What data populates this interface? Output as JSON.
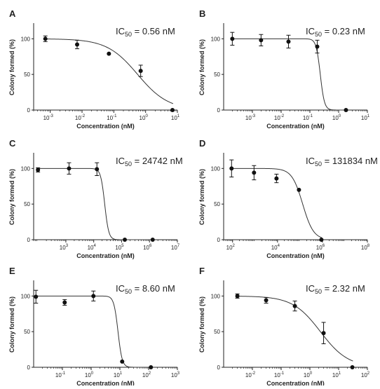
{
  "chart_data": [
    {
      "type": "scatter",
      "panel": "A",
      "ylabel": "Colony formed  (%)",
      "xlabel": "Concentration (nM)",
      "annotation": {
        "prefix": "IC",
        "sub": "50",
        "text": " = 0.56 nM"
      },
      "x_scale": "log",
      "x_ticks": [
        {
          "exp": "-3",
          "val": 0.001
        },
        {
          "exp": "-2",
          "val": 0.01
        },
        {
          "exp": "-1",
          "val": 0.1
        },
        {
          "exp": "0",
          "val": 1
        },
        {
          "exp": "1",
          "val": 10
        }
      ],
      "xlim": [
        0.0003,
        10
      ],
      "y_ticks": [
        0,
        50,
        100
      ],
      "ylim": [
        0,
        120
      ],
      "points": [
        {
          "x": 0.0007,
          "y": 100,
          "err": 4
        },
        {
          "x": 0.007,
          "y": 92,
          "err": 6
        },
        {
          "x": 0.07,
          "y": 79,
          "err": 0
        },
        {
          "x": 0.7,
          "y": 55,
          "err": 8
        },
        {
          "x": 7,
          "y": 0,
          "err": 0
        }
      ],
      "curve": {
        "top": 100,
        "bottom": 0,
        "ic50": 0.56,
        "hill": 0.9
      }
    },
    {
      "type": "scatter",
      "panel": "B",
      "ylabel": "Colony formed  (%)",
      "xlabel": "Concentration (nM)",
      "annotation": {
        "prefix": "IC",
        "sub": "50",
        "text": " = 0.23 nM"
      },
      "x_scale": "log",
      "x_ticks": [
        {
          "exp": "-3",
          "val": 0.001
        },
        {
          "exp": "-2",
          "val": 0.01
        },
        {
          "exp": "-1",
          "val": 0.1
        },
        {
          "exp": "0",
          "val": 1
        },
        {
          "exp": "1",
          "val": 10
        }
      ],
      "xlim": [
        0.0001,
        10
      ],
      "y_ticks": [
        0,
        50,
        100
      ],
      "ylim": [
        0,
        120
      ],
      "points": [
        {
          "x": 0.0002,
          "y": 100,
          "err": 9
        },
        {
          "x": 0.002,
          "y": 98,
          "err": 8
        },
        {
          "x": 0.018,
          "y": 96,
          "err": 9
        },
        {
          "x": 0.18,
          "y": 89,
          "err": 9
        },
        {
          "x": 1.8,
          "y": 0,
          "err": 0
        }
      ],
      "curve": {
        "top": 100,
        "bottom": 0,
        "ic50": 0.23,
        "hill": 6
      }
    },
    {
      "type": "scatter",
      "panel": "C",
      "ylabel": "Colony formed  (%)",
      "xlabel": "Concentration (nM)",
      "annotation": {
        "prefix": "IC",
        "sub": "50",
        "text": " = 24742 nM"
      },
      "x_scale": "log",
      "x_ticks": [
        {
          "exp": "3",
          "val": 1000
        },
        {
          "exp": "4",
          "val": 10000
        },
        {
          "exp": "5",
          "val": 100000
        },
        {
          "exp": "6",
          "val": 1000000
        },
        {
          "exp": "7",
          "val": 10000000
        }
      ],
      "xlim": [
        70,
        10000000
      ],
      "y_ticks": [
        0,
        50,
        100
      ],
      "ylim": [
        0,
        120
      ],
      "points": [
        {
          "x": 100,
          "y": 98,
          "err": 3
        },
        {
          "x": 1300,
          "y": 100,
          "err": 8
        },
        {
          "x": 13000,
          "y": 99,
          "err": 9
        },
        {
          "x": 130000,
          "y": 0,
          "err": 0
        },
        {
          "x": 1300000,
          "y": 0,
          "err": 0
        }
      ],
      "curve": {
        "top": 100,
        "bottom": 0,
        "ic50": 24742,
        "hill": 6
      }
    },
    {
      "type": "scatter",
      "panel": "D",
      "ylabel": "Colony formed  (%)",
      "xlabel": "Concentration (nM)",
      "annotation": {
        "prefix": "IC",
        "sub": "50",
        "text": " = 131834 nM"
      },
      "x_scale": "log",
      "x_ticks": [
        {
          "exp": "2",
          "val": 100
        },
        {
          "exp": "4",
          "val": 10000
        },
        {
          "exp": "6",
          "val": 1000000
        },
        {
          "exp": "8",
          "val": 100000000
        }
      ],
      "xlim": [
        40,
        100000000
      ],
      "y_ticks": [
        0,
        50,
        100
      ],
      "ylim": [
        0,
        120
      ],
      "points": [
        {
          "x": 90,
          "y": 100,
          "err": 12
        },
        {
          "x": 900,
          "y": 94,
          "err": 10
        },
        {
          "x": 9000,
          "y": 86,
          "err": 6
        },
        {
          "x": 90000,
          "y": 70,
          "err": 0
        },
        {
          "x": 900000,
          "y": 0,
          "err": 0
        }
      ],
      "curve": {
        "top": 100,
        "bottom": 0,
        "ic50": 131834,
        "hill": 1.8
      }
    },
    {
      "type": "scatter",
      "panel": "E",
      "ylabel": "Colony formed  (%)",
      "xlabel": "Concentration (nM)",
      "annotation": {
        "prefix": "IC",
        "sub": "50",
        "text": " = 8.60 nM"
      },
      "x_scale": "log",
      "x_ticks": [
        {
          "exp": "-1",
          "val": 0.1
        },
        {
          "exp": "0",
          "val": 1
        },
        {
          "exp": "1",
          "val": 10
        },
        {
          "exp": "2",
          "val": 100
        },
        {
          "exp": "3",
          "val": 1000
        }
      ],
      "xlim": [
        0.01,
        1000
      ],
      "y_ticks": [
        0,
        50,
        100
      ],
      "ylim": [
        0,
        120
      ],
      "points": [
        {
          "x": 0.012,
          "y": 99,
          "err": 9
        },
        {
          "x": 0.12,
          "y": 91,
          "err": 4
        },
        {
          "x": 1.2,
          "y": 100,
          "err": 7
        },
        {
          "x": 12,
          "y": 8,
          "err": 0
        },
        {
          "x": 120,
          "y": 0,
          "err": 0
        }
      ],
      "curve": {
        "top": 100,
        "bottom": 0,
        "ic50": 8.6,
        "hill": 6
      }
    },
    {
      "type": "scatter",
      "panel": "F",
      "ylabel": "Colony formed  (%)",
      "xlabel": "Concentration (nM)",
      "annotation": {
        "prefix": "IC",
        "sub": "50",
        "text": " = 2.32 nM"
      },
      "x_scale": "log",
      "x_ticks": [
        {
          "exp": "-2",
          "val": 0.01
        },
        {
          "exp": "-1",
          "val": 0.1
        },
        {
          "exp": "0",
          "val": 1
        },
        {
          "exp": "1",
          "val": 10
        },
        {
          "exp": "2",
          "val": 100
        }
      ],
      "xlim": [
        0.001,
        100
      ],
      "y_ticks": [
        0,
        50,
        100
      ],
      "ylim": [
        0,
        120
      ],
      "points": [
        {
          "x": 0.003,
          "y": 100,
          "err": 3
        },
        {
          "x": 0.03,
          "y": 94,
          "err": 4
        },
        {
          "x": 0.3,
          "y": 86,
          "err": 7
        },
        {
          "x": 3,
          "y": 48,
          "err": 15
        },
        {
          "x": 30,
          "y": 0,
          "err": 0
        }
      ],
      "curve": {
        "top": 100,
        "bottom": 0,
        "ic50": 2.32,
        "hill": 0.9
      }
    }
  ]
}
